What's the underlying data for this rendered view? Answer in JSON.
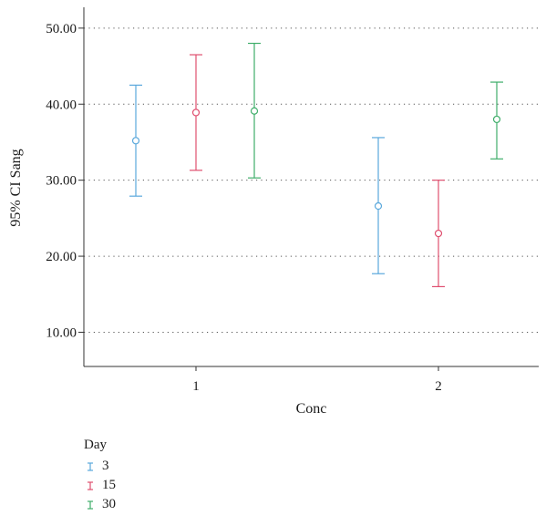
{
  "chart_data": {
    "type": "errorbar",
    "title": "",
    "xlabel": "Conc",
    "ylabel": "95% CI Sang",
    "categories": [
      "1",
      "2"
    ],
    "y_ticks": [
      "10.00",
      "20.00",
      "30.00",
      "40.00",
      "50.00"
    ],
    "ylim": [
      5.5,
      52.5
    ],
    "grid": "horizontal dotted",
    "legend": {
      "title": "Day",
      "placement": "bottom-left"
    },
    "series": [
      {
        "name": "3",
        "color": "#5aa8dc",
        "points": [
          {
            "category": "1",
            "mean": 35.2,
            "lower": 27.9,
            "upper": 42.5
          },
          {
            "category": "2",
            "mean": 26.6,
            "lower": 17.7,
            "upper": 35.6
          }
        ]
      },
      {
        "name": "15",
        "color": "#df4f6f",
        "points": [
          {
            "category": "1",
            "mean": 38.9,
            "lower": 31.3,
            "upper": 46.5
          },
          {
            "category": "2",
            "mean": 23.0,
            "lower": 16.0,
            "upper": 30.0
          }
        ]
      },
      {
        "name": "30",
        "color": "#3fae6a",
        "points": [
          {
            "category": "1",
            "mean": 39.1,
            "lower": 30.3,
            "upper": 48.0
          },
          {
            "category": "2",
            "mean": 38.0,
            "lower": 32.8,
            "upper": 42.9
          }
        ]
      }
    ]
  }
}
